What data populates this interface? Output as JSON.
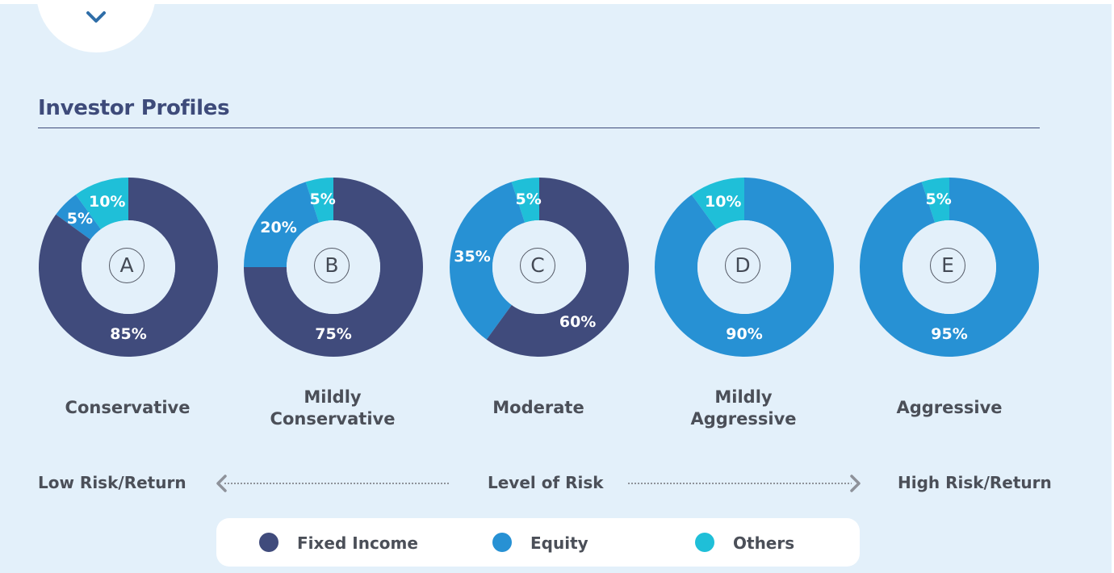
{
  "title": "Investor Profiles",
  "colors": {
    "fixed_income": "#404b7c",
    "equity": "#2791d4",
    "others": "#1fbfd8",
    "hole": "#e3f0fa"
  },
  "icons": {
    "top": "chevron-down-icon"
  },
  "risk_scale": {
    "low": "Low Risk/Return",
    "center": "Level of Risk",
    "high": "High Risk/Return"
  },
  "chart_data": {
    "type": "donut",
    "series_order": [
      "Fixed Income",
      "Equity",
      "Others"
    ],
    "profiles": [
      {
        "letter": "A",
        "name": "Conservative",
        "values": [
          85,
          5,
          10
        ],
        "labels": [
          "85%",
          "5%",
          "10%"
        ]
      },
      {
        "letter": "B",
        "name": "Mildly\nConservative",
        "values": [
          75,
          20,
          5
        ],
        "labels": [
          "75%",
          "20%",
          "5%"
        ]
      },
      {
        "letter": "C",
        "name": "Moderate",
        "values": [
          60,
          35,
          5
        ],
        "labels": [
          "60%",
          "35%",
          "5%"
        ]
      },
      {
        "letter": "D",
        "name": "Mildly\nAggressive",
        "values": [
          0,
          90,
          10
        ],
        "labels": [
          "",
          "90%",
          "10%"
        ]
      },
      {
        "letter": "E",
        "name": "Aggressive",
        "values": [
          0,
          95,
          5
        ],
        "labels": [
          "",
          "95%",
          "5%"
        ]
      }
    ],
    "legend": [
      {
        "name": "Fixed Income",
        "color": "#404b7c"
      },
      {
        "name": "Equity",
        "color": "#2791d4"
      },
      {
        "name": "Others",
        "color": "#1fbfd8"
      }
    ]
  }
}
